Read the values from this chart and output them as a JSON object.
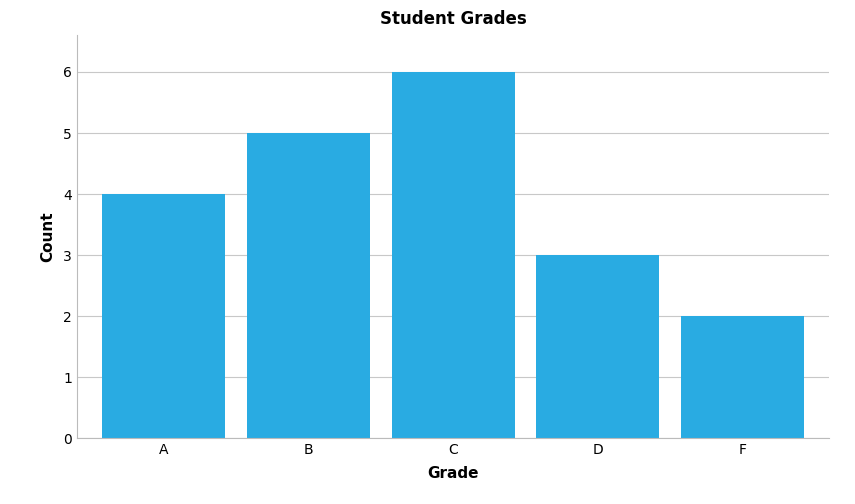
{
  "categories": [
    "A",
    "B",
    "C",
    "D",
    "F"
  ],
  "values": [
    4,
    5,
    6,
    3,
    2
  ],
  "bar_color": "#29ABE2",
  "title": "Student Grades",
  "xlabel": "Grade",
  "ylabel": "Count",
  "ylim": [
    0,
    6.6
  ],
  "yticks": [
    0,
    1,
    2,
    3,
    4,
    5,
    6
  ],
  "title_fontsize": 12,
  "axis_label_fontsize": 11,
  "tick_fontsize": 10,
  "background_color": "#ffffff",
  "grid_color": "#c8c8c8",
  "bar_width": 0.85,
  "bar_gap": 0.08
}
